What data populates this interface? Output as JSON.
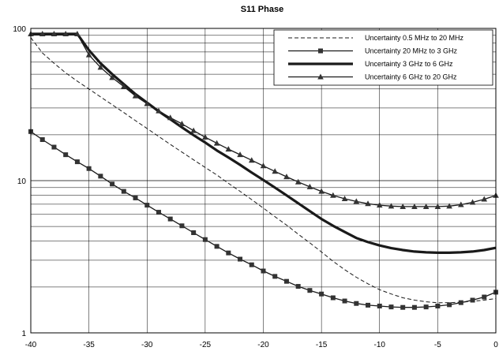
{
  "chart_data": {
    "type": "line",
    "title": "S11 Phase",
    "xlabel": "",
    "ylabel": "",
    "xlim": [
      -40,
      0
    ],
    "ylim": [
      1,
      100
    ],
    "yscale": "log",
    "grid": true,
    "legend_position": "top-right",
    "x_ticks": [
      "-40",
      "-35",
      "-30",
      "-25",
      "-20",
      "-15",
      "-10",
      "-5",
      "0"
    ],
    "y_ticks": [
      "1",
      "10",
      "100"
    ],
    "series": [
      {
        "name": "Uncertainty 0.5 MHz to 20 MHz",
        "style": "dashed",
        "marker": "none",
        "x": [
          -40,
          -39,
          -38,
          -37,
          -36,
          -35,
          -34,
          -33,
          -32,
          -31,
          -30,
          -29,
          -28,
          -27,
          -26,
          -25,
          -24,
          -23,
          -22,
          -21,
          -20,
          -19,
          -18,
          -17,
          -16,
          -15,
          -14,
          -13,
          -12,
          -11,
          -10,
          -9,
          -8,
          -7,
          -6,
          -5,
          -4,
          -3,
          -2,
          -1,
          0
        ],
        "y": [
          87,
          69,
          59,
          51,
          45,
          40,
          35.5,
          31.5,
          28,
          24.8,
          22,
          19.5,
          17.3,
          15.4,
          13.7,
          12.2,
          10.9,
          9.6,
          8.5,
          7.5,
          6.6,
          5.8,
          5.1,
          4.45,
          3.9,
          3.4,
          2.95,
          2.6,
          2.32,
          2.1,
          1.92,
          1.8,
          1.7,
          1.64,
          1.6,
          1.58,
          1.58,
          1.59,
          1.61,
          1.64,
          1.68
        ]
      },
      {
        "name": "Uncertainty 20 MHz to  3 GHz",
        "style": "solid",
        "marker": "square",
        "x": [
          -40,
          -39,
          -38,
          -37,
          -36,
          -35,
          -34,
          -33,
          -32,
          -31,
          -30,
          -29,
          -28,
          -27,
          -26,
          -25,
          -24,
          -23,
          -22,
          -21,
          -20,
          -19,
          -18,
          -17,
          -16,
          -15,
          -14,
          -13,
          -12,
          -11,
          -10,
          -9,
          -8,
          -7,
          -6,
          -5,
          -4,
          -3,
          -2,
          -1,
          0
        ],
        "y": [
          21,
          18.6,
          16.6,
          14.8,
          13.3,
          12,
          10.7,
          9.5,
          8.5,
          7.7,
          6.9,
          6.2,
          5.6,
          5.05,
          4.55,
          4.1,
          3.7,
          3.35,
          3.05,
          2.8,
          2.55,
          2.35,
          2.18,
          2.02,
          1.9,
          1.8,
          1.7,
          1.62,
          1.56,
          1.52,
          1.5,
          1.48,
          1.47,
          1.47,
          1.48,
          1.5,
          1.53,
          1.58,
          1.64,
          1.72,
          1.85
        ]
      },
      {
        "name": "Uncertainty 3 GHz to 6 GHz",
        "style": "solid-thick",
        "marker": "none",
        "x": [
          -40,
          -39,
          -38,
          -37,
          -36,
          -35,
          -34,
          -33,
          -32,
          -31,
          -30,
          -29,
          -28,
          -27,
          -26,
          -25,
          -24,
          -23,
          -22,
          -21,
          -20,
          -19,
          -18,
          -17,
          -16,
          -15,
          -14,
          -13,
          -12,
          -11,
          -10,
          -9,
          -8,
          -7,
          -6,
          -5,
          -4,
          -3,
          -2,
          -1,
          0
        ],
        "y": [
          92,
          92,
          92,
          92,
          92,
          72,
          59,
          50,
          43,
          37,
          32.5,
          28.5,
          25.3,
          22.4,
          19.9,
          17.8,
          15.8,
          14.2,
          12.7,
          11.3,
          10.1,
          9,
          8,
          7.1,
          6.3,
          5.6,
          5.05,
          4.6,
          4.2,
          3.95,
          3.75,
          3.6,
          3.5,
          3.42,
          3.38,
          3.36,
          3.36,
          3.38,
          3.42,
          3.5,
          3.62
        ]
      },
      {
        "name": "Uncertainty 6 GHz to 20 GHz",
        "style": "solid",
        "marker": "triangle",
        "x": [
          -40,
          -39,
          -38,
          -37,
          -36,
          -35,
          -34,
          -33,
          -32,
          -31,
          -30,
          -29,
          -28,
          -27,
          -26,
          -25,
          -24,
          -23,
          -22,
          -21,
          -20,
          -19,
          -18,
          -17,
          -16,
          -15,
          -14,
          -13,
          -12,
          -11,
          -10,
          -9,
          -8,
          -7,
          -6,
          -5,
          -4,
          -3,
          -2,
          -1,
          0
        ],
        "y": [
          92,
          92,
          92,
          92,
          92,
          67,
          55.5,
          47.5,
          41.5,
          36,
          32,
          28.7,
          25.9,
          23.6,
          21.3,
          19.3,
          17.6,
          16.1,
          14.8,
          13.6,
          12.5,
          11.5,
          10.6,
          9.8,
          9.1,
          8.5,
          8,
          7.6,
          7.3,
          7.05,
          6.9,
          6.8,
          6.75,
          6.75,
          6.75,
          6.75,
          6.8,
          6.95,
          7.2,
          7.55,
          8
        ]
      }
    ]
  }
}
